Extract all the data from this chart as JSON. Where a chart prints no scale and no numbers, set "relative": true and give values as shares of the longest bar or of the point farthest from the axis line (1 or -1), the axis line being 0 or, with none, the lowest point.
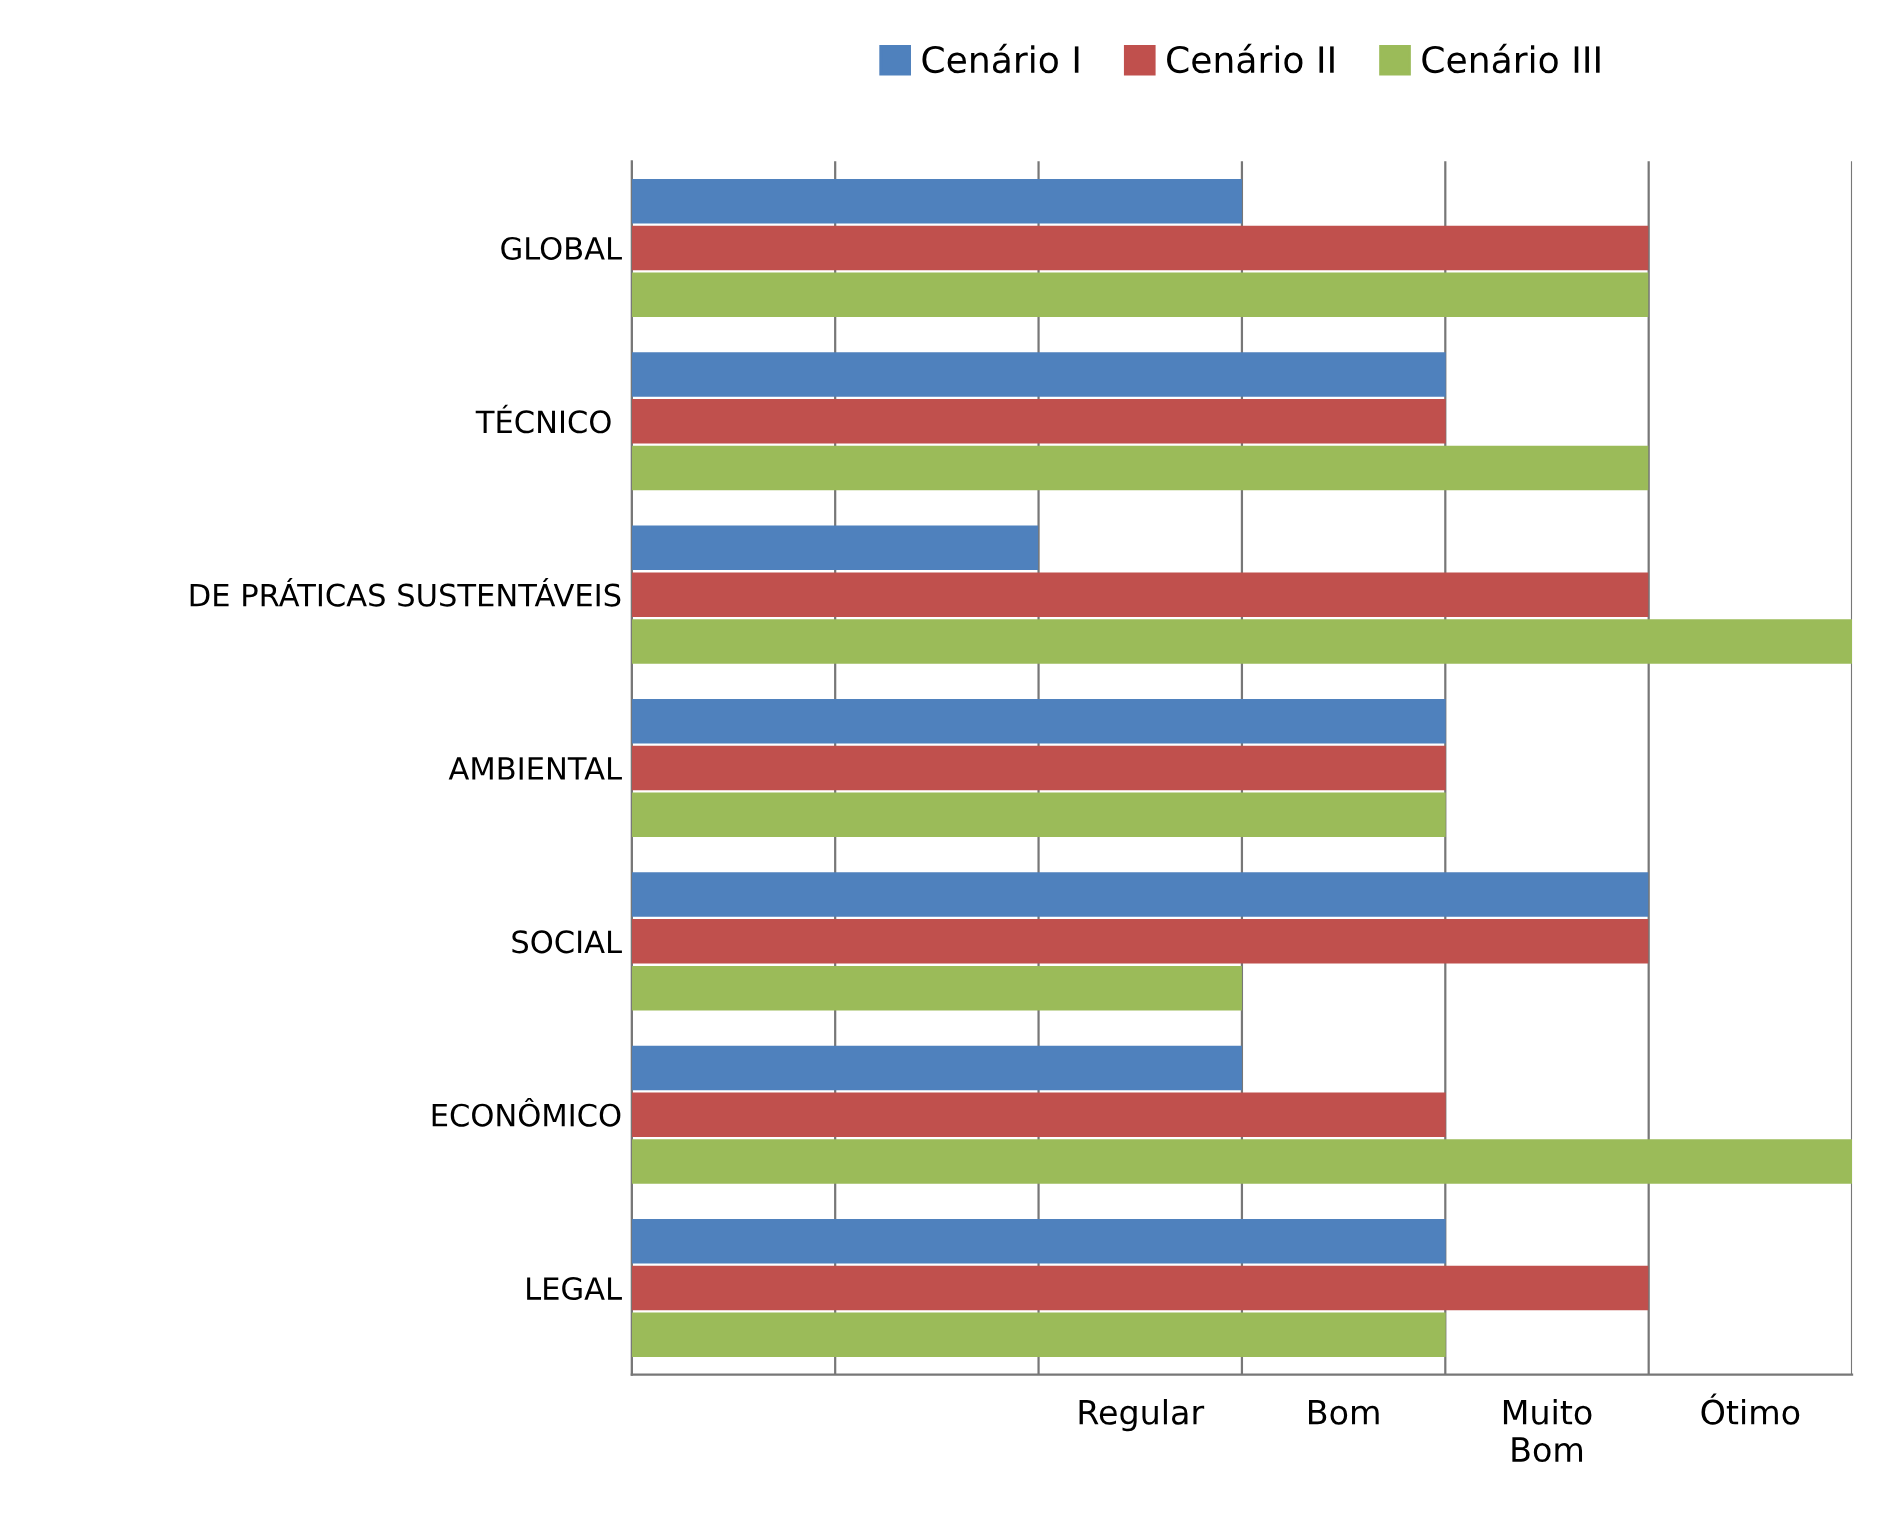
{
  "chart_data": {
    "type": "bar",
    "orientation": "horizontal",
    "relative": true,
    "categories": [
      "GLOBAL",
      "TÉCNICO ",
      "DE PRÁTICAS SUSTENTÁVEIS",
      "AMBIENTAL",
      "SOCIAL",
      "ECONÔMICO",
      "LEGAL"
    ],
    "series": [
      {
        "name": "Cenário I",
        "color": "#4f81bd",
        "values": [
          0.5,
          0.667,
          0.333,
          0.667,
          0.833,
          0.5,
          0.667
        ]
      },
      {
        "name": "Cenário II",
        "color": "#c0504d",
        "values": [
          0.833,
          0.667,
          0.833,
          0.667,
          0.833,
          0.667,
          0.833
        ]
      },
      {
        "name": "Cenário III",
        "color": "#9bbb59",
        "values": [
          0.833,
          0.833,
          1,
          0.667,
          0.5,
          1,
          0.667
        ]
      }
    ],
    "annotations": [
      "Regular",
      "Bom",
      "Muito\nBom",
      "Ótimo"
    ],
    "grid": "x",
    "legend": "top"
  }
}
